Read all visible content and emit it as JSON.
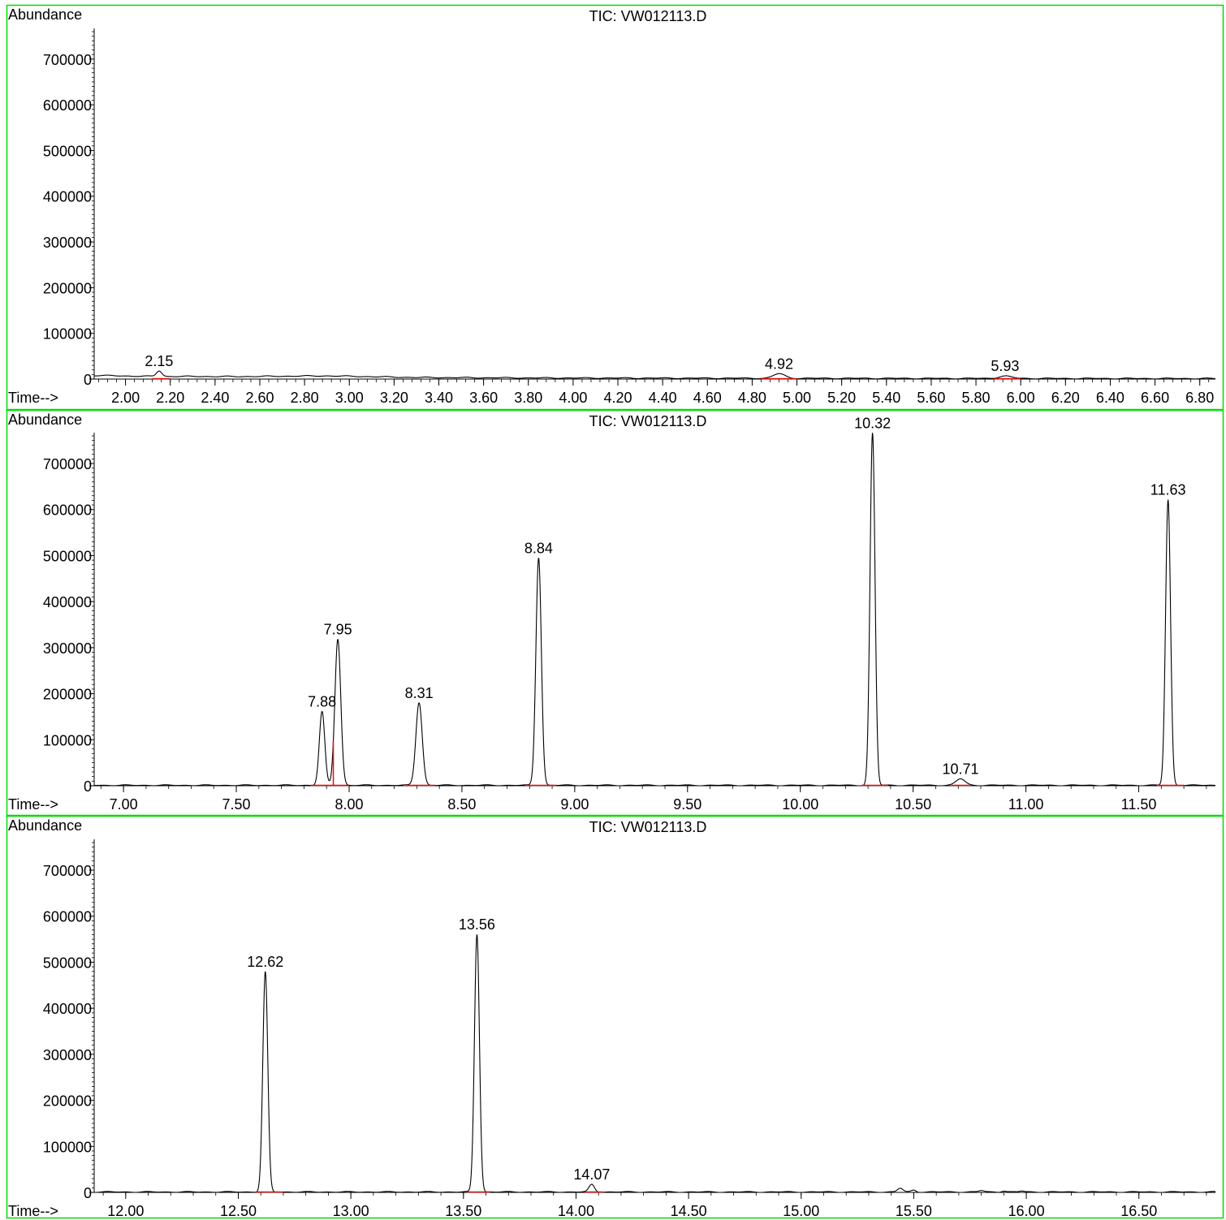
{
  "colors": {
    "frame": "#00dd00",
    "trace": "#000000",
    "baseline": "#e01010",
    "axis": "#000000"
  },
  "chart_data": [
    {
      "type": "line",
      "title": "TIC: VW012113.D",
      "ylabel": "Abundance",
      "xlabel": "Time-->",
      "xlim": [
        1.86,
        6.87
      ],
      "ylim": [
        0,
        760000
      ],
      "y_ticks": [
        0,
        100000,
        200000,
        300000,
        400000,
        500000,
        600000,
        700000
      ],
      "y_tick_labels": [
        "0",
        "100000",
        "200000",
        "300000",
        "400000",
        "500000",
        "600000",
        "700000"
      ],
      "x_ticks": [
        2.0,
        2.2,
        2.4,
        2.6,
        2.8,
        3.0,
        3.2,
        3.4,
        3.6,
        3.8,
        4.0,
        4.2,
        4.4,
        4.6,
        4.8,
        5.0,
        5.2,
        5.4,
        5.6,
        5.8,
        6.0,
        6.2,
        6.4,
        6.6,
        6.8
      ],
      "x_tick_labels": [
        "2.00",
        "2.20",
        "2.40",
        "2.60",
        "2.80",
        "3.00",
        "3.20",
        "3.40",
        "3.60",
        "3.80",
        "4.00",
        "4.20",
        "4.40",
        "4.60",
        "4.80",
        "5.00",
        "5.20",
        "5.40",
        "5.60",
        "5.80",
        "6.00",
        "6.20",
        "6.40",
        "6.60",
        "6.80"
      ],
      "x_minor_step": 0.04,
      "baseline_profile": [
        [
          1.86,
          8000
        ],
        [
          2.1,
          6000
        ],
        [
          2.5,
          5500
        ],
        [
          2.9,
          7000
        ],
        [
          3.3,
          3500
        ],
        [
          3.8,
          2500
        ],
        [
          4.5,
          2000
        ],
        [
          5.5,
          1500
        ],
        [
          6.87,
          1200
        ]
      ],
      "peaks": [
        {
          "label": "2.15",
          "rt": 2.15,
          "height": 12000,
          "width": 0.012,
          "integ": [
            2.12,
            2.2
          ]
        },
        {
          "label": "4.92",
          "rt": 4.92,
          "height": 10000,
          "width": 0.025,
          "integ": [
            4.84,
            5.0
          ]
        },
        {
          "label": "5.93",
          "rt": 5.93,
          "height": 5000,
          "width": 0.03,
          "integ": [
            5.88,
            6.0
          ]
        }
      ]
    },
    {
      "type": "line",
      "title": "TIC: VW012113.D",
      "ylabel": "Abundance",
      "xlabel": "Time-->",
      "xlim": [
        6.87,
        11.84
      ],
      "ylim": [
        0,
        760000
      ],
      "y_ticks": [
        0,
        100000,
        200000,
        300000,
        400000,
        500000,
        600000,
        700000
      ],
      "y_tick_labels": [
        "0",
        "100000",
        "200000",
        "300000",
        "400000",
        "500000",
        "600000",
        "700000"
      ],
      "x_ticks": [
        7.0,
        7.5,
        8.0,
        8.5,
        9.0,
        9.5,
        10.0,
        10.5,
        11.0,
        11.5
      ],
      "x_tick_labels": [
        "7.00",
        "7.50",
        "8.00",
        "8.50",
        "9.00",
        "9.50",
        "10.00",
        "10.50",
        "11.00",
        "11.50"
      ],
      "x_minor_step": 0.1,
      "baseline_profile": [
        [
          6.87,
          1000
        ],
        [
          11.84,
          1000
        ]
      ],
      "peaks": [
        {
          "label": "7.88",
          "rt": 7.88,
          "height": 160000,
          "width": 0.012,
          "integ": [
            7.83,
            7.93
          ]
        },
        {
          "label": "7.95",
          "rt": 7.95,
          "height": 318000,
          "width": 0.013,
          "integ": [
            7.93,
            8.0
          ]
        },
        {
          "label": "8.31",
          "rt": 8.31,
          "height": 180000,
          "width": 0.014,
          "integ": [
            8.24,
            8.38
          ]
        },
        {
          "label": "8.84",
          "rt": 8.84,
          "height": 495000,
          "width": 0.012,
          "integ": [
            8.78,
            8.92
          ]
        },
        {
          "label": "10.32",
          "rt": 10.32,
          "height": 765000,
          "width": 0.011,
          "integ": [
            10.27,
            10.39
          ]
        },
        {
          "label": "10.71",
          "rt": 10.71,
          "height": 14000,
          "width": 0.02,
          "integ": [
            10.67,
            10.75
          ]
        },
        {
          "label": "11.63",
          "rt": 11.63,
          "height": 620000,
          "width": 0.011,
          "integ": [
            11.58,
            11.7
          ]
        }
      ]
    },
    {
      "type": "line",
      "title": "TIC: VW012113.D",
      "ylabel": "Abundance",
      "xlabel": "Time-->",
      "xlim": [
        11.86,
        16.84
      ],
      "ylim": [
        0,
        760000
      ],
      "y_ticks": [
        0,
        100000,
        200000,
        300000,
        400000,
        500000,
        600000,
        700000
      ],
      "y_tick_labels": [
        "0",
        "100000",
        "200000",
        "300000",
        "400000",
        "500000",
        "600000",
        "700000"
      ],
      "x_ticks": [
        12.0,
        12.5,
        13.0,
        13.5,
        14.0,
        14.5,
        15.0,
        15.5,
        16.0,
        16.5
      ],
      "x_tick_labels": [
        "12.00",
        "12.50",
        "13.00",
        "13.50",
        "14.00",
        "14.50",
        "15.00",
        "15.50",
        "16.00",
        "16.50"
      ],
      "x_minor_step": 0.1,
      "baseline_profile": [
        [
          11.86,
          1000
        ],
        [
          16.84,
          1000
        ]
      ],
      "peaks": [
        {
          "label": "12.62",
          "rt": 12.62,
          "height": 478000,
          "width": 0.011,
          "integ": [
            12.58,
            12.7
          ]
        },
        {
          "label": "13.56",
          "rt": 13.56,
          "height": 560000,
          "width": 0.011,
          "integ": [
            13.52,
            13.62
          ]
        },
        {
          "label": "14.07",
          "rt": 14.07,
          "height": 16000,
          "width": 0.012,
          "integ": [
            14.04,
            14.12
          ]
        }
      ],
      "minor_bumps": [
        [
          15.44,
          8000,
          0.012
        ],
        [
          15.5,
          4000,
          0.01
        ],
        [
          15.8,
          3000,
          0.012
        ],
        [
          15.9,
          2500,
          0.01
        ],
        [
          15.98,
          2000,
          0.01
        ]
      ]
    }
  ]
}
